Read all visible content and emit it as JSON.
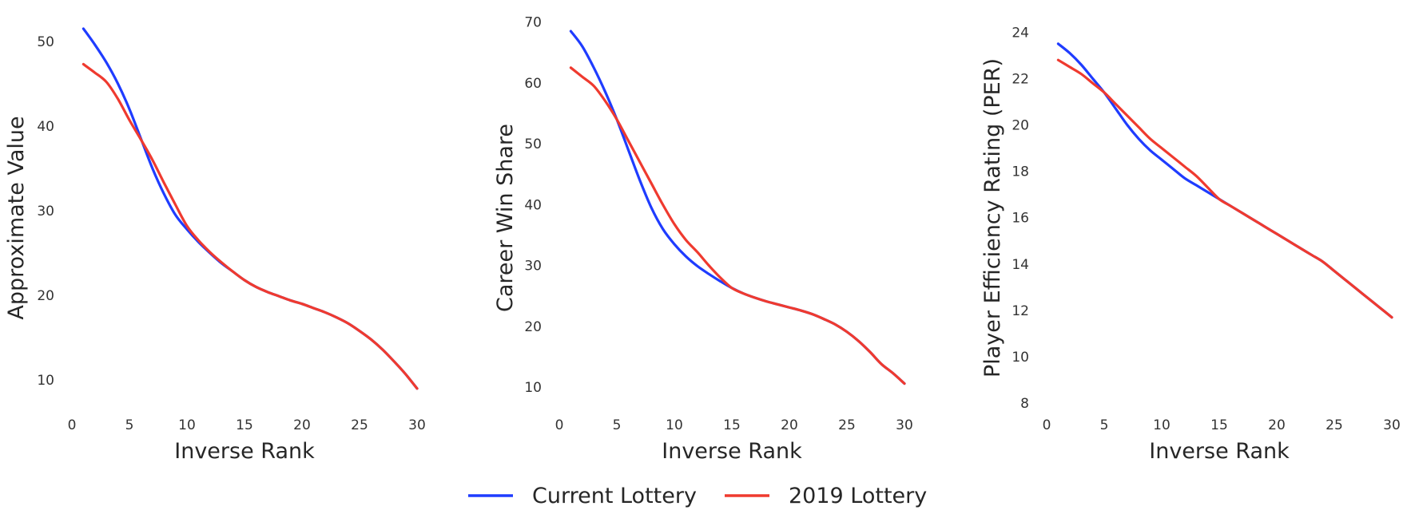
{
  "colors": {
    "current": "#1f3cff",
    "lottery_2019": "#ef3a2f"
  },
  "legend": {
    "items": [
      {
        "label": "Current Lottery",
        "color": "#1f3cff"
      },
      {
        "label": "2019 Lottery",
        "color": "#ef3a2f"
      }
    ]
  },
  "chart_data": [
    {
      "type": "line",
      "xlabel": "Inverse Rank",
      "ylabel": "Approximate Value",
      "xlim": [
        0,
        30
      ],
      "ylim": [
        7,
        53
      ],
      "xticks": [
        0,
        5,
        10,
        15,
        20,
        25,
        30
      ],
      "yticks": [
        10,
        20,
        30,
        40,
        50
      ],
      "grid": false,
      "legend": "bottom-center",
      "series": [
        {
          "name": "Current Lottery",
          "color": "#1f3cff",
          "x": [
            1,
            2,
            3,
            4,
            5,
            6,
            7,
            8,
            9,
            10,
            11,
            12,
            13,
            14,
            15,
            16,
            17,
            18,
            19,
            20,
            21,
            22,
            23,
            24,
            25,
            26,
            27,
            28,
            29,
            30
          ],
          "y": [
            51.5,
            49.6,
            47.5,
            45.0,
            42.0,
            38.5,
            35.0,
            32.0,
            29.5,
            27.8,
            26.3,
            25.0,
            23.8,
            22.8,
            21.8,
            21.0,
            20.4,
            19.9,
            19.4,
            19.0,
            18.5,
            18.0,
            17.4,
            16.7,
            15.8,
            14.8,
            13.6,
            12.2,
            10.7,
            9.0
          ]
        },
        {
          "name": "2019 Lottery",
          "color": "#ef3a2f",
          "x": [
            1,
            2,
            3,
            4,
            5,
            6,
            7,
            8,
            9,
            10,
            11,
            12,
            13,
            14,
            15,
            16,
            17,
            18,
            19,
            20,
            21,
            22,
            23,
            24,
            25,
            26,
            27,
            28,
            29,
            30
          ],
          "y": [
            47.3,
            46.3,
            45.2,
            43.2,
            40.7,
            38.4,
            36.0,
            33.3,
            30.7,
            28.2,
            26.5,
            25.1,
            23.9,
            22.8,
            21.8,
            21.0,
            20.4,
            19.9,
            19.4,
            19.0,
            18.5,
            18.0,
            17.4,
            16.7,
            15.8,
            14.8,
            13.6,
            12.2,
            10.7,
            9.0
          ]
        }
      ]
    },
    {
      "type": "line",
      "xlabel": "Inverse Rank",
      "ylabel": "Career Win Share",
      "xlim": [
        0,
        30
      ],
      "ylim": [
        7,
        71
      ],
      "xticks": [
        0,
        5,
        10,
        15,
        20,
        25,
        30
      ],
      "yticks": [
        10,
        20,
        30,
        40,
        50,
        60,
        70
      ],
      "grid": false,
      "series": [
        {
          "name": "Current Lottery",
          "color": "#1f3cff",
          "x": [
            1,
            2,
            3,
            4,
            5,
            6,
            7,
            8,
            9,
            10,
            11,
            12,
            13,
            14,
            15,
            16,
            17,
            18,
            19,
            20,
            21,
            22,
            23,
            24,
            25,
            26,
            27,
            28,
            29,
            30
          ],
          "y": [
            68.5,
            66.0,
            62.5,
            58.5,
            54.0,
            49.0,
            44.0,
            39.5,
            36.0,
            33.5,
            31.5,
            29.9,
            28.6,
            27.4,
            26.3,
            25.4,
            24.7,
            24.1,
            23.6,
            23.1,
            22.6,
            22.0,
            21.2,
            20.3,
            19.1,
            17.6,
            15.8,
            13.8,
            12.3,
            10.6
          ]
        },
        {
          "name": "2019 Lottery",
          "color": "#ef3a2f",
          "x": [
            1,
            2,
            3,
            4,
            5,
            6,
            7,
            8,
            9,
            10,
            11,
            12,
            13,
            14,
            15,
            16,
            17,
            18,
            19,
            20,
            21,
            22,
            23,
            24,
            25,
            26,
            27,
            28,
            29,
            30
          ],
          "y": [
            62.5,
            61.0,
            59.5,
            57.0,
            54.0,
            50.5,
            47.0,
            43.5,
            40.0,
            36.8,
            34.2,
            32.2,
            30.0,
            28.0,
            26.3,
            25.4,
            24.7,
            24.1,
            23.6,
            23.1,
            22.6,
            22.0,
            21.2,
            20.3,
            19.1,
            17.6,
            15.8,
            13.8,
            12.3,
            10.6
          ]
        }
      ]
    },
    {
      "type": "line",
      "xlabel": "Inverse Rank",
      "ylabel": "Player Efficiency Rating (PER)",
      "xlim": [
        0,
        30
      ],
      "ylim": [
        7.9,
        24.7
      ],
      "xticks": [
        0,
        5,
        10,
        15,
        20,
        25,
        30
      ],
      "yticks": [
        8,
        10,
        12,
        14,
        16,
        18,
        20,
        22,
        24
      ],
      "grid": false,
      "series": [
        {
          "name": "Current Lottery",
          "color": "#1f3cff",
          "x": [
            1,
            2,
            3,
            4,
            5,
            6,
            7,
            8,
            9,
            10,
            11,
            12,
            13,
            14,
            15,
            16,
            17,
            18,
            19,
            20,
            21,
            22,
            23,
            24,
            25,
            26,
            27,
            28,
            29,
            30
          ],
          "y": [
            23.5,
            23.1,
            22.6,
            22.0,
            21.4,
            20.7,
            20.0,
            19.4,
            18.9,
            18.5,
            18.1,
            17.7,
            17.4,
            17.1,
            16.8,
            16.5,
            16.2,
            15.9,
            15.6,
            15.3,
            15.0,
            14.7,
            14.4,
            14.1,
            13.7,
            13.3,
            12.9,
            12.5,
            12.1,
            11.7
          ]
        },
        {
          "name": "2019 Lottery",
          "color": "#ef3a2f",
          "x": [
            1,
            2,
            3,
            4,
            5,
            6,
            7,
            8,
            9,
            10,
            11,
            12,
            13,
            14,
            15,
            16,
            17,
            18,
            19,
            20,
            21,
            22,
            23,
            24,
            25,
            26,
            27,
            28,
            29,
            30
          ],
          "y": [
            22.8,
            22.5,
            22.2,
            21.8,
            21.4,
            20.9,
            20.4,
            19.9,
            19.4,
            19.0,
            18.6,
            18.2,
            17.8,
            17.3,
            16.8,
            16.5,
            16.2,
            15.9,
            15.6,
            15.3,
            15.0,
            14.7,
            14.4,
            14.1,
            13.7,
            13.3,
            12.9,
            12.5,
            12.1,
            11.7
          ]
        }
      ]
    }
  ]
}
